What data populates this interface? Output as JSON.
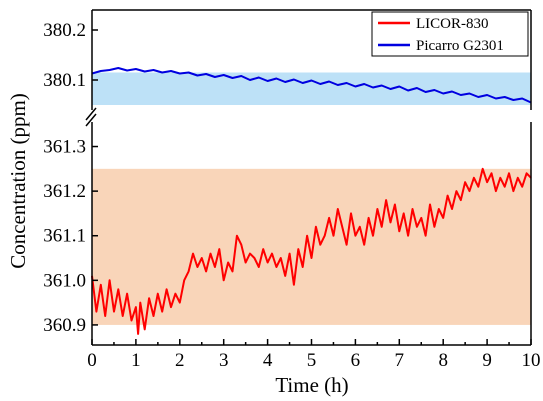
{
  "chart_data": {
    "type": "line",
    "xlabel": "Time (h)",
    "ylabel": "Concentration (ppm)",
    "x_ticks": [
      "0",
      "1",
      "2",
      "3",
      "4",
      "5",
      "6",
      "7",
      "8",
      "9",
      "10"
    ],
    "xlim": [
      0,
      10
    ],
    "axis_break": true,
    "legend_position": "top-right",
    "panels": [
      {
        "name": "upper",
        "ylim": [
          380.04,
          380.24
        ],
        "y_ticks": [
          "380.1",
          "380.2"
        ],
        "y_tick_values": [
          380.1,
          380.2
        ],
        "band": {
          "y0": 380.05,
          "y1": 380.115,
          "color": "#bde1f7"
        }
      },
      {
        "name": "lower",
        "ylim": [
          360.855,
          361.355
        ],
        "y_ticks": [
          "360.9",
          "361.0",
          "361.1",
          "361.2",
          "361.3"
        ],
        "y_tick_values": [
          360.9,
          361.0,
          361.1,
          361.2,
          361.3
        ],
        "band": {
          "y0": 360.9,
          "y1": 361.25,
          "color": "#f9d5b9"
        }
      }
    ],
    "series": [
      {
        "name": "LICOR-830",
        "color": "#ff0000",
        "panel": "lower",
        "x": [
          0,
          0.1,
          0.2,
          0.3,
          0.4,
          0.5,
          0.6,
          0.7,
          0.8,
          0.9,
          1.0,
          1.05,
          1.1,
          1.2,
          1.3,
          1.4,
          1.5,
          1.6,
          1.7,
          1.8,
          1.9,
          2.0,
          2.1,
          2.2,
          2.3,
          2.4,
          2.5,
          2.6,
          2.7,
          2.8,
          2.9,
          3.0,
          3.1,
          3.2,
          3.3,
          3.4,
          3.5,
          3.6,
          3.7,
          3.8,
          3.9,
          4.0,
          4.1,
          4.2,
          4.3,
          4.4,
          4.5,
          4.6,
          4.7,
          4.8,
          4.9,
          5.0,
          5.1,
          5.2,
          5.3,
          5.4,
          5.5,
          5.6,
          5.7,
          5.8,
          5.9,
          6.0,
          6.1,
          6.2,
          6.3,
          6.4,
          6.5,
          6.6,
          6.7,
          6.8,
          6.9,
          7.0,
          7.1,
          7.2,
          7.3,
          7.4,
          7.5,
          7.6,
          7.7,
          7.8,
          7.9,
          8.0,
          8.1,
          8.2,
          8.3,
          8.4,
          8.5,
          8.6,
          8.7,
          8.8,
          8.9,
          9.0,
          9.1,
          9.2,
          9.3,
          9.4,
          9.5,
          9.6,
          9.7,
          9.8,
          9.9,
          10.0
        ],
        "y": [
          361.01,
          360.93,
          360.99,
          360.92,
          361.0,
          360.93,
          360.98,
          360.92,
          360.97,
          360.91,
          360.94,
          360.88,
          360.95,
          360.89,
          360.96,
          360.92,
          360.97,
          360.93,
          360.98,
          360.94,
          360.97,
          360.95,
          361.0,
          361.02,
          361.06,
          361.03,
          361.05,
          361.02,
          361.06,
          361.03,
          361.07,
          361.0,
          361.04,
          361.02,
          361.1,
          361.08,
          361.04,
          361.06,
          361.05,
          361.03,
          361.07,
          361.04,
          361.06,
          361.03,
          361.05,
          361.01,
          361.06,
          360.99,
          361.07,
          361.03,
          361.1,
          361.05,
          361.12,
          361.08,
          361.1,
          361.14,
          361.1,
          361.16,
          361.12,
          361.08,
          361.15,
          361.1,
          361.12,
          361.08,
          361.14,
          361.1,
          361.16,
          361.12,
          361.18,
          361.13,
          361.17,
          361.11,
          361.15,
          361.1,
          361.16,
          361.12,
          361.14,
          361.1,
          361.17,
          361.12,
          361.16,
          361.14,
          361.19,
          361.16,
          361.2,
          361.18,
          361.22,
          361.2,
          361.23,
          361.21,
          361.25,
          361.22,
          361.24,
          361.2,
          361.23,
          361.21,
          361.24,
          361.2,
          361.23,
          361.21,
          361.24,
          361.23
        ]
      },
      {
        "name": "Picarro G2301",
        "color": "#0000e0",
        "panel": "upper",
        "x": [
          0,
          0.2,
          0.4,
          0.6,
          0.8,
          1.0,
          1.2,
          1.4,
          1.6,
          1.8,
          2.0,
          2.2,
          2.4,
          2.6,
          2.8,
          3.0,
          3.2,
          3.4,
          3.6,
          3.8,
          4.0,
          4.2,
          4.4,
          4.6,
          4.8,
          5.0,
          5.2,
          5.4,
          5.6,
          5.8,
          6.0,
          6.2,
          6.4,
          6.6,
          6.8,
          7.0,
          7.2,
          7.4,
          7.6,
          7.8,
          8.0,
          8.2,
          8.4,
          8.6,
          8.8,
          9.0,
          9.2,
          9.4,
          9.6,
          9.8,
          10.0
        ],
        "y": [
          380.113,
          380.118,
          380.12,
          380.124,
          380.119,
          380.122,
          380.117,
          380.12,
          380.115,
          380.118,
          380.113,
          380.115,
          380.109,
          380.112,
          380.106,
          380.11,
          380.104,
          380.108,
          380.1,
          380.105,
          380.098,
          380.103,
          380.096,
          380.101,
          380.094,
          380.099,
          380.092,
          380.097,
          380.09,
          380.094,
          380.087,
          380.092,
          380.085,
          380.089,
          380.082,
          380.087,
          380.079,
          380.084,
          380.076,
          380.08,
          380.073,
          380.077,
          380.07,
          380.073,
          380.066,
          380.07,
          380.063,
          380.066,
          380.06,
          380.063,
          380.055
        ]
      }
    ]
  }
}
